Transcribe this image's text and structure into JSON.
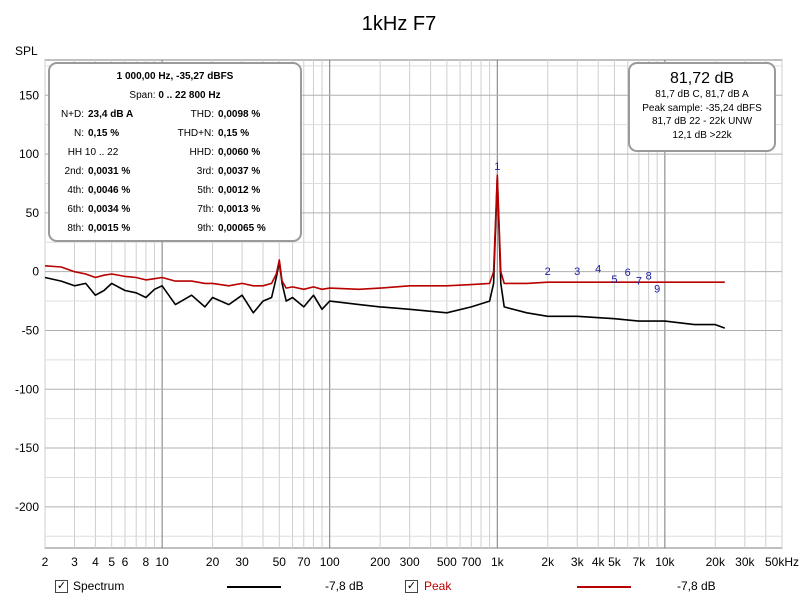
{
  "chart_data": {
    "type": "line",
    "title": "1kHz F7",
    "ylabel": "SPL",
    "xscale": "log",
    "xlim": [
      2,
      50000
    ],
    "ylim": [
      -235,
      180
    ],
    "grid": true,
    "x_tick_labels": [
      {
        "x": 2,
        "label": "2"
      },
      {
        "x": 3,
        "label": "3"
      },
      {
        "x": 4,
        "label": "4"
      },
      {
        "x": 5,
        "label": "5"
      },
      {
        "x": 6,
        "label": "6"
      },
      {
        "x": 8,
        "label": "8"
      },
      {
        "x": 10,
        "label": "10"
      },
      {
        "x": 20,
        "label": "20"
      },
      {
        "x": 30,
        "label": "30"
      },
      {
        "x": 50,
        "label": "50"
      },
      {
        "x": 70,
        "label": "70"
      },
      {
        "x": 100,
        "label": "100"
      },
      {
        "x": 200,
        "label": "200"
      },
      {
        "x": 300,
        "label": "300"
      },
      {
        "x": 500,
        "label": "500"
      },
      {
        "x": 700,
        "label": "700"
      },
      {
        "x": 1000,
        "label": "1k"
      },
      {
        "x": 2000,
        "label": "2k"
      },
      {
        "x": 3000,
        "label": "3k"
      },
      {
        "x": 4000,
        "label": "4k"
      },
      {
        "x": 5000,
        "label": "5k"
      },
      {
        "x": 7000,
        "label": "7k"
      },
      {
        "x": 10000,
        "label": "10k"
      },
      {
        "x": 20000,
        "label": "20k"
      },
      {
        "x": 30000,
        "label": "30k"
      },
      {
        "x": 50000,
        "label": "50kHz"
      }
    ],
    "y_ticks": [
      150,
      100,
      50,
      0,
      -50,
      -100,
      -150,
      -200
    ],
    "y_tick_labels": [
      "150",
      "100",
      "50",
      "0",
      "-50",
      "-100",
      "-150",
      "-200"
    ],
    "series": [
      {
        "name": "Spectrum",
        "color": "#000000",
        "x": [
          2,
          2.5,
          3,
          3.5,
          4,
          4.5,
          5,
          6,
          7,
          8,
          9,
          10,
          12,
          15,
          18,
          20,
          25,
          30,
          35,
          40,
          45,
          48,
          50,
          52,
          55,
          60,
          70,
          80,
          90,
          100,
          150,
          200,
          300,
          500,
          700,
          900,
          950,
          1000,
          1050,
          1100,
          1500,
          2000,
          3000,
          5000,
          7000,
          10000,
          15000,
          20000,
          22800
        ],
        "y": [
          -5,
          -8,
          -12,
          -10,
          -20,
          -16,
          -10,
          -16,
          -18,
          -22,
          -15,
          -12,
          -28,
          -20,
          -30,
          -22,
          -28,
          -20,
          -35,
          -25,
          -22,
          -5,
          8,
          -10,
          -25,
          -22,
          -30,
          -20,
          -32,
          -25,
          -28,
          -30,
          -32,
          -35,
          -30,
          -25,
          -10,
          80,
          -10,
          -30,
          -35,
          -38,
          -38,
          -40,
          -42,
          -42,
          -45,
          -45,
          -48
        ]
      },
      {
        "name": "Peak",
        "color": "#b80000",
        "x": [
          2,
          2.5,
          3,
          3.5,
          4,
          4.5,
          5,
          6,
          7,
          8,
          9,
          10,
          12,
          15,
          18,
          20,
          25,
          30,
          35,
          40,
          45,
          48,
          50,
          52,
          55,
          60,
          70,
          80,
          90,
          100,
          150,
          200,
          300,
          500,
          700,
          900,
          950,
          1000,
          1050,
          1100,
          1500,
          2000,
          3000,
          5000,
          7000,
          10000,
          15000,
          20000,
          22800
        ],
        "y": [
          5,
          4,
          0,
          -2,
          -5,
          -3,
          -2,
          -4,
          -5,
          -7,
          -6,
          -5,
          -8,
          -8,
          -10,
          -10,
          -12,
          -10,
          -12,
          -12,
          -10,
          -2,
          10,
          -8,
          -14,
          -13,
          -15,
          -13,
          -15,
          -14,
          -15,
          -14,
          -12,
          -12,
          -11,
          -10,
          0,
          82,
          0,
          -10,
          -10,
          -9,
          -9,
          -9,
          -9,
          -9,
          -9,
          -9,
          -9
        ]
      }
    ],
    "harmonic_markers": [
      {
        "label": "1",
        "x": 1000,
        "y": 82
      },
      {
        "label": "2",
        "x": 2000,
        "y": -7
      },
      {
        "label": "3",
        "x": 3000,
        "y": -7
      },
      {
        "label": "4",
        "x": 4000,
        "y": -5
      },
      {
        "label": "5",
        "x": 5000,
        "y": -14
      },
      {
        "label": "6",
        "x": 6000,
        "y": -8
      },
      {
        "label": "7",
        "x": 7000,
        "y": -15
      },
      {
        "label": "8",
        "x": 8000,
        "y": -11
      },
      {
        "label": "9",
        "x": 9000,
        "y": -22
      }
    ]
  },
  "left_panel": {
    "header": "1 000,00 Hz, -35,27 dBFS",
    "span_label": "Span:",
    "span_value": "0 .. 22 800 Hz",
    "rows": [
      {
        "l1": "N+D:",
        "v1": "23,4 dB A",
        "l2": "THD:",
        "v2": "0,0098 %"
      },
      {
        "l1": "N:",
        "v1": "0,15 %",
        "l2": "THD+N:",
        "v2": "0,15 %"
      },
      {
        "l1": "HH 10 .. 22",
        "v1": "",
        "l2": "HHD:",
        "v2": "0,0060 %"
      },
      {
        "l1": "2nd:",
        "v1": "0,0031 %",
        "l2": "3rd:",
        "v2": "0,0037 %"
      },
      {
        "l1": "4th:",
        "v1": "0,0046 %",
        "l2": "5th:",
        "v2": "0,0012 %"
      },
      {
        "l1": "6th:",
        "v1": "0,0034 %",
        "l2": "7th:",
        "v2": "0,0013 %"
      },
      {
        "l1": "8th:",
        "v1": "0,0015 %",
        "l2": "9th:",
        "v2": "0,00065 %"
      }
    ]
  },
  "right_panel": {
    "big": "81,72 dB",
    "lines": [
      "81,7 dB C, 81,7 dB A",
      "Peak sample: -35,24 dBFS",
      "81,7 dB 22 - 22k UNW",
      "12,1 dB >22k"
    ]
  },
  "legend": {
    "spectrum": {
      "label": "Spectrum",
      "value": "-7,8 dB",
      "checked": true,
      "color": "#000000"
    },
    "peak": {
      "label": "Peak",
      "value": "-7,8 dB",
      "checked": true,
      "color": "#b80000"
    }
  }
}
